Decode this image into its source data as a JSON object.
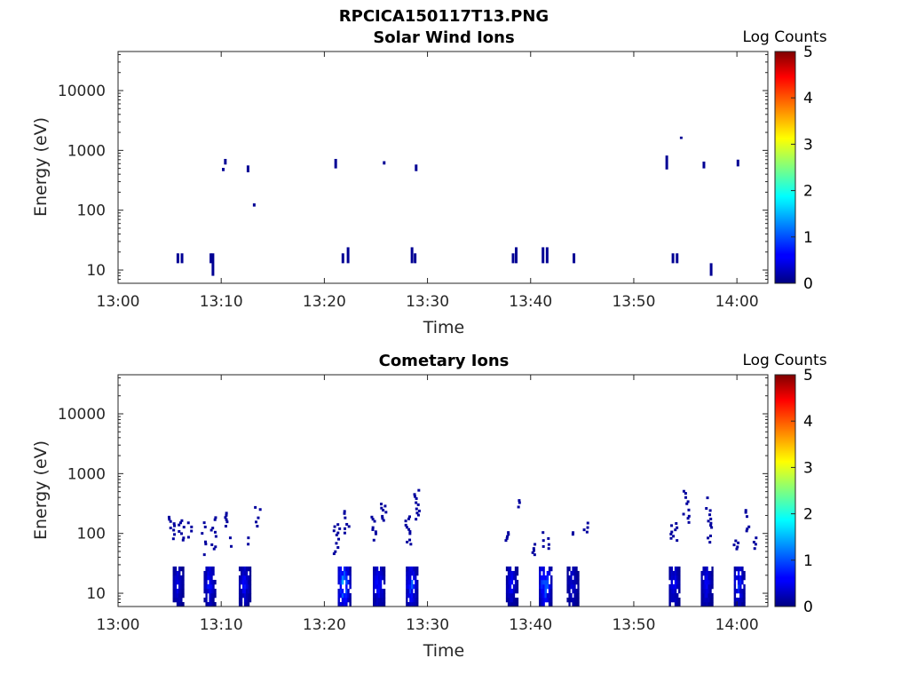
{
  "figure_title": "RPCICA150117T13.PNG",
  "chart_data": [
    {
      "type": "heatmap",
      "title": "Solar Wind Ions",
      "xlabel": "Time",
      "ylabel": "Energy (eV)",
      "x_ticks": [
        "13:00",
        "13:10",
        "13:20",
        "13:30",
        "13:40",
        "13:50",
        "14:00"
      ],
      "x_range": [
        "13:00",
        "14:03"
      ],
      "y_scale": "log",
      "y_ticks": [
        "10",
        "100",
        "1000",
        "10000"
      ],
      "y_range": [
        6,
        45000
      ],
      "colorbar": {
        "label": "Log Counts",
        "ticks": [
          "0",
          "1",
          "2",
          "3",
          "4",
          "5"
        ],
        "range": [
          0,
          5
        ],
        "colormap": "jet"
      },
      "cells": [
        {
          "t": "13:05.8",
          "e_lo": 13,
          "e_hi": 19,
          "v": 0.1
        },
        {
          "t": "13:06.2",
          "e_lo": 13,
          "e_hi": 19,
          "v": 0.1
        },
        {
          "t": "13:09.0",
          "e_lo": 13,
          "e_hi": 19,
          "v": 0.1
        },
        {
          "t": "13:09.2",
          "e_lo": 8,
          "e_hi": 19,
          "v": 0.1
        },
        {
          "t": "13:10.2",
          "e_lo": 450,
          "e_hi": 510,
          "v": 0.1
        },
        {
          "t": "13:10.4",
          "e_lo": 580,
          "e_hi": 720,
          "v": 0.1
        },
        {
          "t": "13:12.6",
          "e_lo": 430,
          "e_hi": 560,
          "v": 0.1
        },
        {
          "t": "13:13.2",
          "e_lo": 115,
          "e_hi": 130,
          "v": 0.1
        },
        {
          "t": "13:21.1",
          "e_lo": 500,
          "e_hi": 720,
          "v": 0.1
        },
        {
          "t": "13:21.8",
          "e_lo": 13,
          "e_hi": 19,
          "v": 0.1
        },
        {
          "t": "13:22.3",
          "e_lo": 13,
          "e_hi": 24,
          "v": 0.1
        },
        {
          "t": "13:25.8",
          "e_lo": 580,
          "e_hi": 660,
          "v": 0.1
        },
        {
          "t": "13:28.5",
          "e_lo": 13,
          "e_hi": 24,
          "v": 0.1
        },
        {
          "t": "13:28.8",
          "e_lo": 13,
          "e_hi": 19,
          "v": 0.1
        },
        {
          "t": "13:28.9",
          "e_lo": 450,
          "e_hi": 580,
          "v": 0.1
        },
        {
          "t": "13:38.3",
          "e_lo": 13,
          "e_hi": 19,
          "v": 0.1
        },
        {
          "t": "13:38.6",
          "e_lo": 13,
          "e_hi": 24,
          "v": 0.1
        },
        {
          "t": "13:41.2",
          "e_lo": 13,
          "e_hi": 24,
          "v": 0.1
        },
        {
          "t": "13:41.6",
          "e_lo": 13,
          "e_hi": 24,
          "v": 0.1
        },
        {
          "t": "13:44.2",
          "e_lo": 13,
          "e_hi": 19,
          "v": 0.1
        },
        {
          "t": "13:53.2",
          "e_lo": 480,
          "e_hi": 820,
          "v": 0.1
        },
        {
          "t": "13:53.8",
          "e_lo": 13,
          "e_hi": 19,
          "v": 0.1
        },
        {
          "t": "13:54.2",
          "e_lo": 13,
          "e_hi": 19,
          "v": 0.1
        },
        {
          "t": "13:54.6",
          "e_lo": 1550,
          "e_hi": 1700,
          "v": 0.1
        },
        {
          "t": "13:56.8",
          "e_lo": 500,
          "e_hi": 650,
          "v": 0.1
        },
        {
          "t": "13:57.5",
          "e_lo": 8,
          "e_hi": 13,
          "v": 0.1
        },
        {
          "t": "14:00.1",
          "e_lo": 540,
          "e_hi": 700,
          "v": 0.1
        }
      ]
    },
    {
      "type": "heatmap",
      "title": "Cometary Ions",
      "xlabel": "Time",
      "ylabel": "Energy (eV)",
      "x_ticks": [
        "13:00",
        "13:10",
        "13:20",
        "13:30",
        "13:40",
        "13:50",
        "14:00"
      ],
      "x_range": [
        "13:00",
        "14:03"
      ],
      "y_scale": "log",
      "y_ticks": [
        "10",
        "100",
        "1000",
        "10000"
      ],
      "y_range": [
        6,
        45000
      ],
      "colorbar": {
        "label": "Log Counts",
        "ticks": [
          "0",
          "1",
          "2",
          "3",
          "4",
          "5"
        ],
        "range": [
          0,
          5
        ],
        "colormap": "jet"
      },
      "low_energy_bursts": [
        {
          "start": "13:05.3",
          "end": "13:06.4",
          "peak": 0.6
        },
        {
          "start": "13:08.3",
          "end": "13:09.5",
          "peak": 0.8
        },
        {
          "start": "13:11.7",
          "end": "13:12.9",
          "peak": 0.7
        },
        {
          "start": "13:21.3",
          "end": "13:22.6",
          "peak": 1.6
        },
        {
          "start": "13:24.7",
          "end": "13:25.9",
          "peak": 0.9
        },
        {
          "start": "13:27.9",
          "end": "13:29.1",
          "peak": 1.1
        },
        {
          "start": "13:37.6",
          "end": "13:38.8",
          "peak": 0.7
        },
        {
          "start": "13:40.8",
          "end": "13:42.1",
          "peak": 1.4
        },
        {
          "start": "13:43.5",
          "end": "13:44.7",
          "peak": 0.5
        },
        {
          "start": "13:53.4",
          "end": "13:54.5",
          "peak": 0.7
        },
        {
          "start": "13:56.5",
          "end": "13:57.7",
          "peak": 0.7
        },
        {
          "start": "13:59.7",
          "end": "14:00.8",
          "peak": 0.9
        }
      ],
      "burst_energy_range": [
        6,
        28
      ],
      "high_energy_traces": [
        {
          "t": "13:05.2",
          "e_lo": 80,
          "e_hi": 200
        },
        {
          "t": "13:06.1",
          "e_lo": 70,
          "e_hi": 190
        },
        {
          "t": "13:07.0",
          "e_lo": 85,
          "e_hi": 160
        },
        {
          "t": "13:08.4",
          "e_lo": 40,
          "e_hi": 190
        },
        {
          "t": "13:09.3",
          "e_lo": 50,
          "e_hi": 230
        },
        {
          "t": "13:10.3",
          "e_lo": 110,
          "e_hi": 300
        },
        {
          "t": "13:11.1",
          "e_lo": 55,
          "e_hi": 90
        },
        {
          "t": "13:12.4",
          "e_lo": 65,
          "e_hi": 90
        },
        {
          "t": "13:13.6",
          "e_lo": 130,
          "e_hi": 290
        },
        {
          "t": "13:21.2",
          "e_lo": 45,
          "e_hi": 150
        },
        {
          "t": "13:22.1",
          "e_lo": 100,
          "e_hi": 250
        },
        {
          "t": "13:24.8",
          "e_lo": 70,
          "e_hi": 200
        },
        {
          "t": "13:25.7",
          "e_lo": 150,
          "e_hi": 330
        },
        {
          "t": "13:28.1",
          "e_lo": 65,
          "e_hi": 220
        },
        {
          "t": "13:29.0",
          "e_lo": 170,
          "e_hi": 560
        },
        {
          "t": "13:37.6",
          "e_lo": 75,
          "e_hi": 110
        },
        {
          "t": "13:38.7",
          "e_lo": 230,
          "e_hi": 380
        },
        {
          "t": "13:40.3",
          "e_lo": 40,
          "e_hi": 70
        },
        {
          "t": "13:41.5",
          "e_lo": 55,
          "e_hi": 110
        },
        {
          "t": "13:44.1",
          "e_lo": 95,
          "e_hi": 105
        },
        {
          "t": "13:45.4",
          "e_lo": 95,
          "e_hi": 160
        },
        {
          "t": "13:53.9",
          "e_lo": 75,
          "e_hi": 170
        },
        {
          "t": "13:55.1",
          "e_lo": 150,
          "e_hi": 540
        },
        {
          "t": "13:57.3",
          "e_lo": 70,
          "e_hi": 420
        },
        {
          "t": "13:59.9",
          "e_lo": 50,
          "e_hi": 80
        },
        {
          "t": "14:01.0",
          "e_lo": 100,
          "e_hi": 280
        },
        {
          "t": "14:01.7",
          "e_lo": 55,
          "e_hi": 90
        }
      ]
    }
  ]
}
